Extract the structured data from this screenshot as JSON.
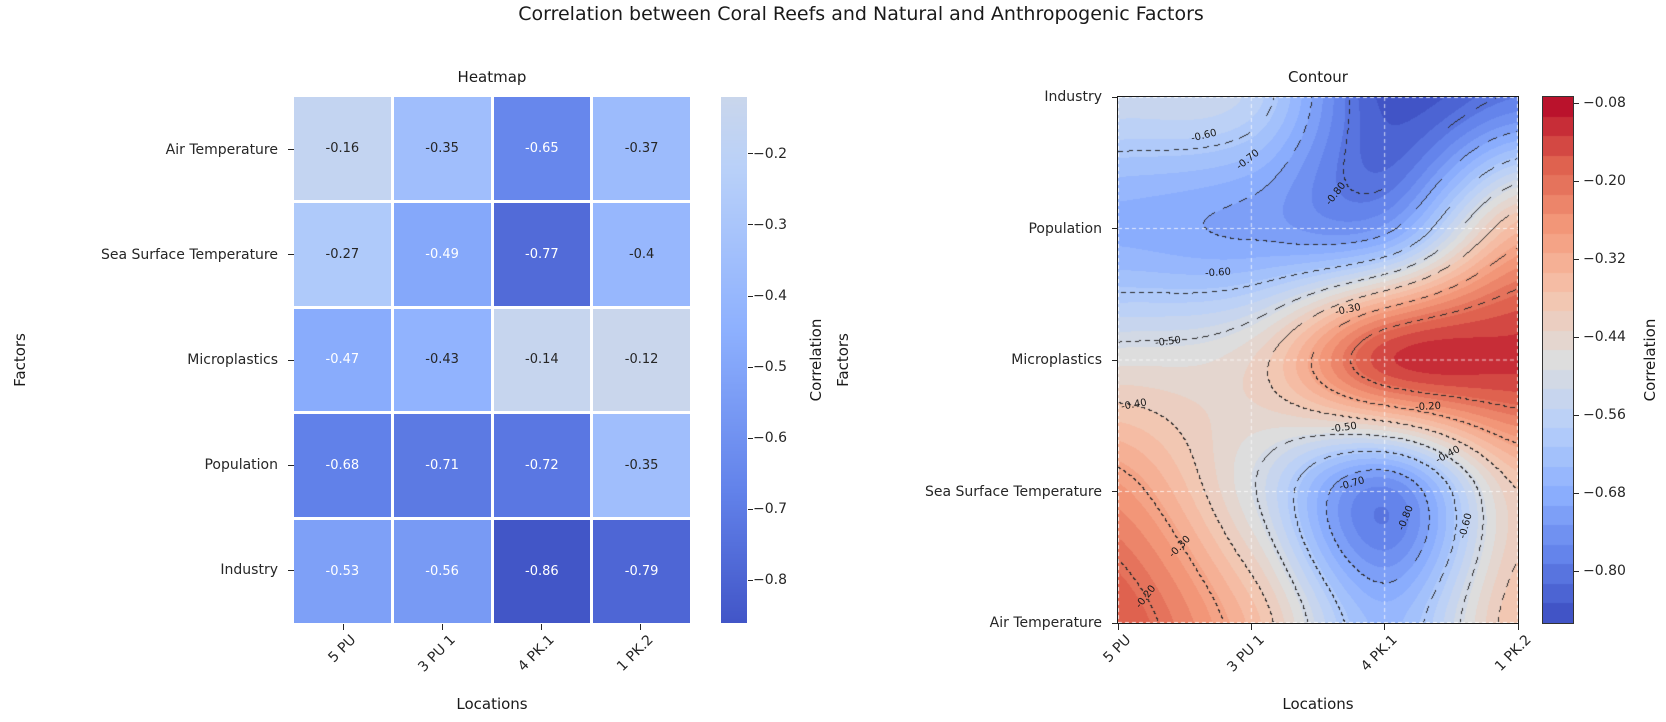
{
  "figure": {
    "title": "Correlation between Coral Reefs and Natural and Anthropogenic Factors"
  },
  "colormap": {
    "name": "coolwarm",
    "anchors": [
      "#3B4CC0",
      "#6282EA",
      "#8DB0FE",
      "#B8D0F9",
      "#DDDDDD",
      "#F5C4AD",
      "#F49A7B",
      "#DE604D",
      "#B40426"
    ]
  },
  "text_colors": {
    "dark": "#262626",
    "light": "#ffffff"
  },
  "chart_data": [
    {
      "type": "heatmap",
      "title": "Heatmap",
      "xlabel": "Locations",
      "ylabel": "Factors",
      "x_categories": [
        "5 PU",
        "3 PU 1",
        "4 PK.1",
        "1 PK.2"
      ],
      "y_categories": [
        "Air Temperature",
        "Sea Surface Temperature",
        "Microplastics",
        "Population",
        "Industry"
      ],
      "values": [
        [
          -0.16,
          -0.35,
          -0.65,
          -0.37
        ],
        [
          -0.27,
          -0.49,
          -0.77,
          -0.4
        ],
        [
          -0.47,
          -0.43,
          -0.14,
          -0.12
        ],
        [
          -0.68,
          -0.71,
          -0.72,
          -0.35
        ],
        [
          -0.53,
          -0.56,
          -0.86,
          -0.79
        ]
      ],
      "annotated": true,
      "white_text_threshold": -0.47,
      "color_norm": {
        "vmin": -0.9,
        "vmax": 0.9
      },
      "colorbar": {
        "label": "Correlation",
        "vmin": -0.86,
        "vmax": -0.12,
        "tick_values": [
          -0.2,
          -0.3,
          -0.4,
          -0.5,
          -0.6,
          -0.7,
          -0.8
        ],
        "tick_labels": [
          "−0.2",
          "−0.3",
          "−0.4",
          "−0.5",
          "−0.6",
          "−0.7",
          "−0.8"
        ]
      }
    },
    {
      "type": "contour",
      "title": "Contour",
      "xlabel": "Locations",
      "ylabel": "Factors",
      "x_categories": [
        "5 PU",
        "3 PU 1",
        "4 PK.1",
        "1 PK.2"
      ],
      "y_categories": [
        "Air Temperature",
        "Sea Surface Temperature",
        "Microplastics",
        "Population",
        "Industry"
      ],
      "y_axis_direction": "bottom-to-top",
      "values": [
        [
          -0.16,
          -0.35,
          -0.65,
          -0.37
        ],
        [
          -0.27,
          -0.49,
          -0.77,
          -0.4
        ],
        [
          -0.47,
          -0.43,
          -0.14,
          -0.12
        ],
        [
          -0.68,
          -0.71,
          -0.72,
          -0.35
        ],
        [
          -0.53,
          -0.56,
          -0.86,
          -0.79
        ]
      ],
      "grid": true,
      "fill_levels": {
        "vmin": -0.88,
        "vmax": -0.07,
        "step": 0.03
      },
      "line_levels": [
        -0.8,
        -0.7,
        -0.6,
        -0.5,
        -0.4,
        -0.3,
        -0.2
      ],
      "line_style": "dashed",
      "contour_labels": [
        {
          "text": "-0.60",
          "x": 0.215,
          "y": 0.075,
          "rot": -14
        },
        {
          "text": "-0.70",
          "x": 0.325,
          "y": 0.12,
          "rot": -38
        },
        {
          "text": "-0.80",
          "x": 0.545,
          "y": 0.185,
          "rot": -52
        },
        {
          "text": "-0.60",
          "x": 0.25,
          "y": 0.335,
          "rot": -4
        },
        {
          "text": "-0.30",
          "x": 0.575,
          "y": 0.405,
          "rot": -12
        },
        {
          "text": "-0.50",
          "x": 0.125,
          "y": 0.465,
          "rot": -7
        },
        {
          "text": "-0.40",
          "x": 0.04,
          "y": 0.585,
          "rot": -10
        },
        {
          "text": "-0.20",
          "x": 0.775,
          "y": 0.59,
          "rot": -3
        },
        {
          "text": "-0.50",
          "x": 0.565,
          "y": 0.63,
          "rot": -8
        },
        {
          "text": "-0.40",
          "x": 0.825,
          "y": 0.68,
          "rot": -28
        },
        {
          "text": "-0.70",
          "x": 0.585,
          "y": 0.735,
          "rot": -16
        },
        {
          "text": "-0.80",
          "x": 0.72,
          "y": 0.8,
          "rot": -68
        },
        {
          "text": "-0.60",
          "x": 0.87,
          "y": 0.815,
          "rot": -75
        },
        {
          "text": "-0.30",
          "x": 0.155,
          "y": 0.855,
          "rot": -46
        },
        {
          "text": "-0.20",
          "x": 0.07,
          "y": 0.95,
          "rot": -52
        }
      ],
      "colorbar": {
        "label": "Correlation",
        "tick_values": [
          -0.08,
          -0.2,
          -0.32,
          -0.44,
          -0.56,
          -0.68,
          -0.8
        ],
        "tick_labels": [
          "−0.08",
          "−0.20",
          "−0.32",
          "−0.44",
          "−0.56",
          "−0.68",
          "−0.80"
        ]
      }
    }
  ]
}
